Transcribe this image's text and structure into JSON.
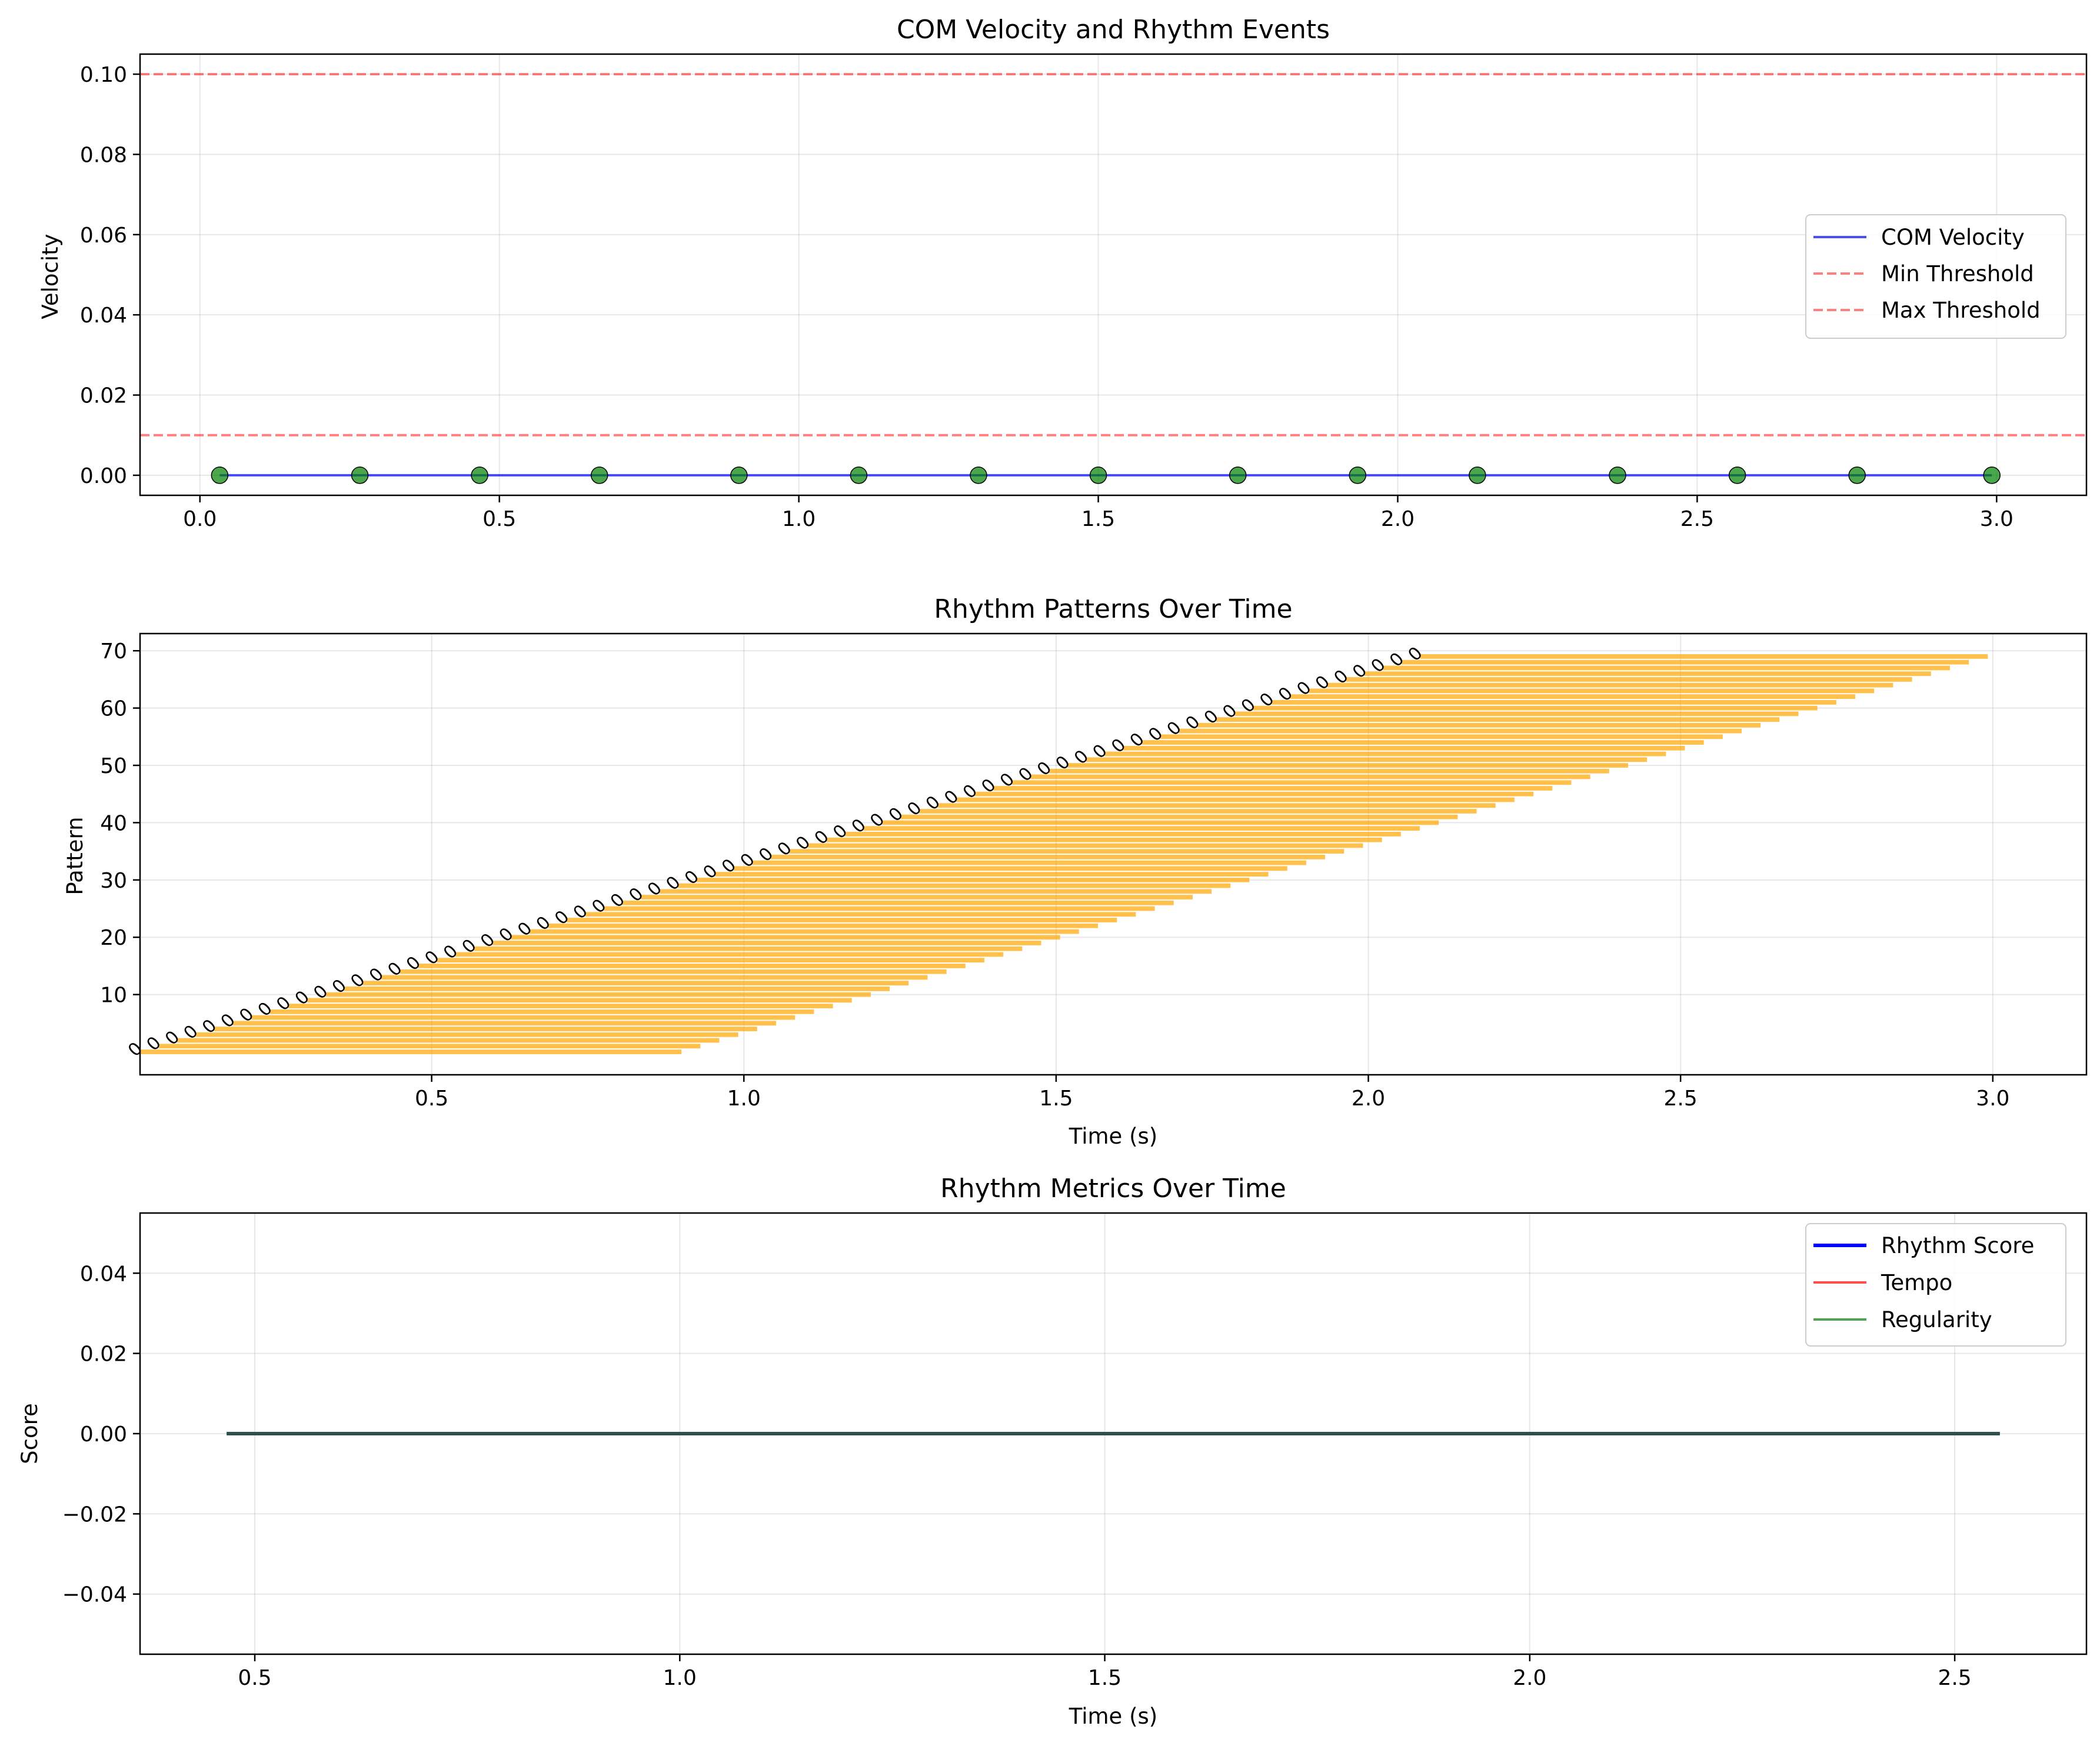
{
  "colors": {
    "velocity": "#0000ff",
    "threshold": "#ff0000",
    "events": "#008000",
    "bars": "#ffa500",
    "rhythm_score": "#0000ff",
    "tempo": "#ff0000",
    "regularity": "#008000",
    "overlap_line": "#2f4f4f"
  },
  "chart_data": [
    {
      "type": "line",
      "title": "COM Velocity and Rhythm Events",
      "xlabel": "",
      "ylabel": "Velocity",
      "xlim": [
        -0.1,
        3.15
      ],
      "ylim": [
        -0.005,
        0.105
      ],
      "xticks": [
        0.0,
        0.5,
        1.0,
        1.5,
        2.0,
        2.5,
        3.0
      ],
      "xtick_labels": [
        "0.0",
        "0.5",
        "1.0",
        "1.5",
        "2.0",
        "2.5",
        "3.0"
      ],
      "yticks": [
        0.0,
        0.02,
        0.04,
        0.06,
        0.08,
        0.1
      ],
      "ytick_labels": [
        "0.00",
        "0.02",
        "0.04",
        "0.06",
        "0.08",
        "0.10"
      ],
      "grid": true,
      "legend_position": "center-right",
      "legend": [
        "COM Velocity",
        "Min Threshold",
        "Max Threshold"
      ],
      "series": [
        {
          "name": "COM Velocity",
          "x": [
            0.033,
            2.992
          ],
          "y": [
            0,
            0
          ]
        }
      ],
      "thresholds": [
        {
          "name": "Min Threshold",
          "y": 0.01
        },
        {
          "name": "Max Threshold",
          "y": 0.1
        }
      ],
      "events": {
        "x": [
          0.033,
          0.267,
          0.467,
          0.667,
          0.9,
          1.1,
          1.3,
          1.5,
          1.733,
          1.933,
          2.133,
          2.367,
          2.567,
          2.767,
          2.992
        ],
        "y": [
          0,
          0,
          0,
          0,
          0,
          0,
          0,
          0,
          0,
          0,
          0,
          0,
          0,
          0,
          0
        ]
      }
    },
    {
      "type": "bar",
      "orientation": "horizontal",
      "title": "Rhythm Patterns Over Time",
      "xlabel": "Time (s)",
      "ylabel": "Pattern",
      "xlim": [
        0.033,
        3.15
      ],
      "ylim": [
        -4,
        73
      ],
      "xticks": [
        0.5,
        1.0,
        1.5,
        2.0,
        2.5,
        3.0
      ],
      "xtick_labels": [
        "0.5",
        "1.0",
        "1.5",
        "2.0",
        "2.5",
        "3.0"
      ],
      "yticks": [
        10,
        20,
        30,
        40,
        50,
        60,
        70
      ],
      "ytick_labels": [
        "10",
        "20",
        "30",
        "40",
        "50",
        "60",
        "70"
      ],
      "grid": true,
      "bars": {
        "count": 70,
        "start_first": 0.033,
        "start_last": 2.083,
        "end_first": 0.9,
        "end_last": 2.992
      },
      "bar_label": "0"
    },
    {
      "type": "line",
      "title": "Rhythm Metrics Over Time",
      "xlabel": "Time (s)",
      "ylabel": "Score",
      "xlim": [
        0.365,
        2.655
      ],
      "ylim": [
        -0.055,
        0.055
      ],
      "xticks": [
        0.5,
        1.0,
        1.5,
        2.0,
        2.5
      ],
      "xtick_labels": [
        "0.5",
        "1.0",
        "1.5",
        "2.0",
        "2.5"
      ],
      "yticks": [
        -0.04,
        -0.02,
        0.0,
        0.02,
        0.04
      ],
      "ytick_labels": [
        "−0.04",
        "−0.02",
        "0.00",
        "0.02",
        "0.04"
      ],
      "grid": true,
      "legend_position": "top-right",
      "legend": [
        "Rhythm Score",
        "Tempo",
        "Regularity"
      ],
      "series": [
        {
          "name": "Rhythm Score",
          "x": [
            0.467,
            2.553
          ],
          "y": [
            0,
            0
          ]
        },
        {
          "name": "Tempo",
          "x": [
            0.467,
            2.553
          ],
          "y": [
            0,
            0
          ]
        },
        {
          "name": "Regularity",
          "x": [
            0.467,
            2.553
          ],
          "y": [
            0,
            0
          ]
        }
      ]
    }
  ]
}
